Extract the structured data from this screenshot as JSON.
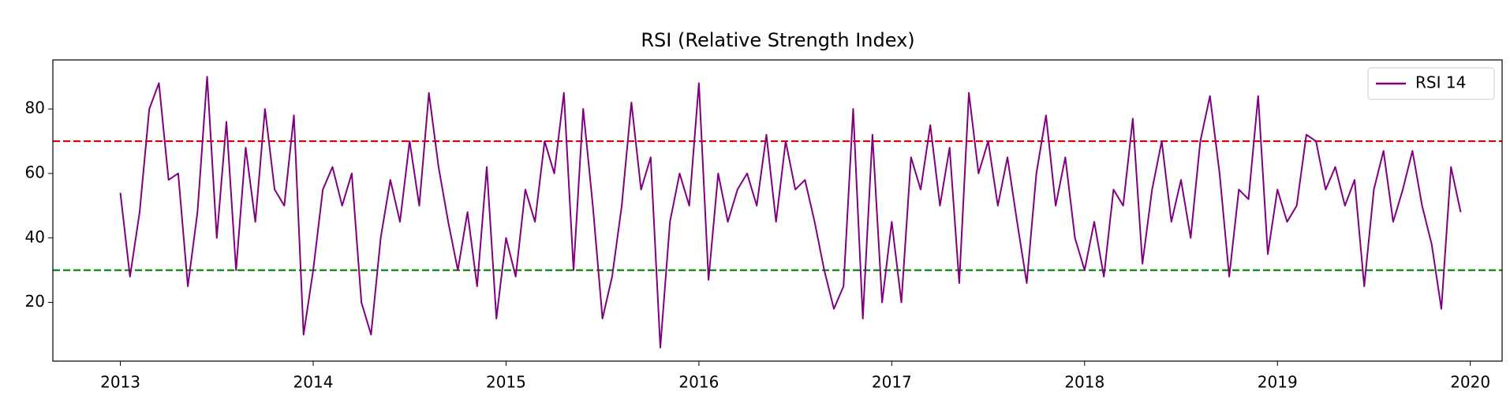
{
  "chart_data": {
    "type": "line",
    "title": "RSI (Relative Strength Index)",
    "x": [
      2013,
      2013.05,
      2013.1,
      2013.15,
      2013.2,
      2013.25,
      2013.3,
      2013.35,
      2013.4,
      2013.45,
      2013.5,
      2013.55,
      2013.6,
      2013.65,
      2013.7,
      2013.75,
      2013.8,
      2013.85,
      2013.9,
      2013.95,
      2014,
      2014.05,
      2014.1,
      2014.15,
      2014.2,
      2014.25,
      2014.3,
      2014.35,
      2014.4,
      2014.45,
      2014.5,
      2014.55,
      2014.6,
      2014.65,
      2014.7,
      2014.75,
      2014.8,
      2014.85,
      2014.9,
      2014.95,
      2015,
      2015.05,
      2015.1,
      2015.15,
      2015.2,
      2015.25,
      2015.3,
      2015.35,
      2015.4,
      2015.45,
      2015.5,
      2015.55,
      2015.6,
      2015.65,
      2015.7,
      2015.75,
      2015.8,
      2015.85,
      2015.9,
      2015.95,
      2016,
      2016.05,
      2016.1,
      2016.15,
      2016.2,
      2016.25,
      2016.3,
      2016.35,
      2016.4,
      2016.45,
      2016.5,
      2016.55,
      2016.6,
      2016.65,
      2016.7,
      2016.75,
      2016.8,
      2016.85,
      2016.9,
      2016.95,
      2017,
      2017.05,
      2017.1,
      2017.15,
      2017.2,
      2017.25,
      2017.3,
      2017.35,
      2017.4,
      2017.45,
      2017.5,
      2017.55,
      2017.6,
      2017.65,
      2017.7,
      2017.75,
      2017.8,
      2017.85,
      2017.9,
      2017.95,
      2018,
      2018.05,
      2018.1,
      2018.15,
      2018.2,
      2018.25,
      2018.3,
      2018.35,
      2018.4,
      2018.45,
      2018.5,
      2018.55,
      2018.6,
      2018.65,
      2018.7,
      2018.75,
      2018.8,
      2018.85,
      2018.9,
      2018.95,
      2019,
      2019.05,
      2019.1,
      2019.15,
      2019.2,
      2019.25,
      2019.3,
      2019.35,
      2019.4,
      2019.45,
      2019.5,
      2019.55,
      2019.6,
      2019.65,
      2019.7,
      2019.75,
      2019.8,
      2019.85,
      2019.9,
      2019.95
    ],
    "series": [
      {
        "name": "RSI 14",
        "color": "#800080",
        "values": [
          54,
          28,
          48,
          80,
          88,
          58,
          60,
          25,
          48,
          90,
          40,
          76,
          30,
          68,
          45,
          80,
          55,
          50,
          78,
          10,
          30,
          55,
          62,
          50,
          60,
          20,
          10,
          40,
          58,
          45,
          70,
          50,
          85,
          62,
          45,
          30,
          48,
          25,
          62,
          15,
          40,
          28,
          55,
          45,
          70,
          60,
          85,
          30,
          80,
          50,
          15,
          28,
          50,
          82,
          55,
          65,
          6,
          45,
          60,
          50,
          88,
          27,
          60,
          45,
          55,
          60,
          50,
          72,
          45,
          70,
          55,
          58,
          45,
          30,
          18,
          25,
          80,
          15,
          72,
          20,
          45,
          20,
          65,
          55,
          75,
          50,
          68,
          26,
          85,
          60,
          70,
          50,
          65,
          45,
          26,
          60,
          78,
          50,
          65,
          40,
          30,
          45,
          28,
          55,
          50,
          77,
          32,
          55,
          70,
          45,
          58,
          40,
          70,
          84,
          60,
          28,
          55,
          52,
          84,
          35,
          55,
          45,
          50,
          72,
          70,
          55,
          62,
          50,
          58,
          25,
          55,
          67,
          45,
          55,
          67,
          50,
          38,
          18,
          62,
          48
        ]
      }
    ],
    "hlines": [
      {
        "value": 70,
        "color": "#e00000"
      },
      {
        "value": 30,
        "color": "#008000"
      }
    ],
    "xlim": [
      2012.65,
      2020.165
    ],
    "xticks": [
      2013,
      2014,
      2015,
      2016,
      2017,
      2018,
      2019,
      2020
    ],
    "ylim": [
      1.8,
      95.2
    ],
    "yticks": [
      20,
      40,
      60,
      80
    ],
    "legend": "upper right"
  }
}
